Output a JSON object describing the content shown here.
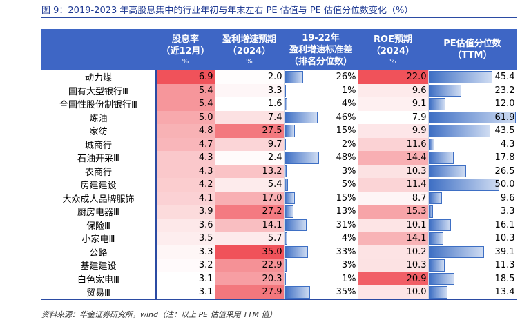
{
  "title": "图 9：2019-2023 年高股息集中的行业年初与年末左右 PE 估值与 PE 估值分位数变化（%）",
  "headers": [
    {
      "label": "股息率",
      "sub": "（近12月）",
      "unit": "%"
    },
    {
      "label": "盈利增速预期",
      "sub": "（2024）",
      "unit": "%"
    },
    {
      "label": "19-22年",
      "sub": "盈利增速标准差",
      "sub2": "（排名分位数）"
    },
    {
      "label": "ROE预期",
      "sub": "（2024）",
      "unit": "%"
    },
    {
      "label": "PE估值分位数",
      "sub": "（TTM）"
    }
  ],
  "colors": {
    "header_bg": "#3e66c5",
    "red_scale": "#f0525a",
    "blue_bar": "#3e6fc4"
  },
  "rows": [
    {
      "name": "动力煤",
      "div": "6.9",
      "growth": "2.0",
      "std": "26%",
      "std_v": 26,
      "roe": "22.0",
      "pe": "45.4",
      "pe_v": 45.4
    },
    {
      "name": "国有大型银行Ⅲ",
      "div": "5.4",
      "growth": "3.3",
      "std": "1%",
      "std_v": 1,
      "roe": "9.6",
      "pe": "23.2",
      "pe_v": 23.2
    },
    {
      "name": "全国性股份制银行Ⅲ",
      "div": "5.4",
      "growth": "1.6",
      "std": "4%",
      "std_v": 4,
      "roe": "9.1",
      "pe": "12.0",
      "pe_v": 12.0
    },
    {
      "name": "炼油",
      "div": "5.0",
      "growth": "7.4",
      "std": "46%",
      "std_v": 46,
      "roe": "7.9",
      "pe": "61.9",
      "pe_v": 61.9
    },
    {
      "name": "家纺",
      "div": "4.8",
      "growth": "27.5",
      "std": "15%",
      "std_v": 15,
      "roe": "9.9",
      "pe": "43.5",
      "pe_v": 43.5
    },
    {
      "name": "城商行",
      "div": "4.7",
      "growth": "9.7",
      "std": "2%",
      "std_v": 2,
      "roe": "11.6",
      "pe": "4.3",
      "pe_v": 4.3
    },
    {
      "name": "石油开采Ⅲ",
      "div": "4.3",
      "growth": "2.4",
      "std": "48%",
      "std_v": 48,
      "roe": "14.4",
      "pe": "17.8",
      "pe_v": 17.8
    },
    {
      "name": "农商行",
      "div": "4.3",
      "growth": "13.2",
      "std": "3%",
      "std_v": 3,
      "roe": "10.3",
      "pe": "26.5",
      "pe_v": 26.5
    },
    {
      "name": "房建建设",
      "div": "4.2",
      "growth": "5.4",
      "std": "5%",
      "std_v": 5,
      "roe": "11.4",
      "pe": "50.0",
      "pe_v": 50.0
    },
    {
      "name": "大众成人品牌服饰",
      "div": "4.1",
      "growth": "17.0",
      "std": "15%",
      "std_v": 15,
      "roe": "8.7",
      "pe": "9.6",
      "pe_v": 9.6
    },
    {
      "name": "厨房电器Ⅲ",
      "div": "3.9",
      "growth": "27.2",
      "std": "13%",
      "std_v": 13,
      "roe": "15.3",
      "pe": "3.3",
      "pe_v": 3.3
    },
    {
      "name": "保险Ⅲ",
      "div": "3.6",
      "growth": "14.1",
      "std": "31%",
      "std_v": 31,
      "roe": "10.1",
      "pe": "16.1",
      "pe_v": 16.1
    },
    {
      "name": "小家电Ⅲ",
      "div": "3.5",
      "growth": "5.7",
      "std": "4%",
      "std_v": 4,
      "roe": "14.1",
      "pe": "10.3",
      "pe_v": 10.3
    },
    {
      "name": "公路",
      "div": "3.3",
      "growth": "35.0",
      "std": "33%",
      "std_v": 33,
      "roe": "10.2",
      "pe": "39.1",
      "pe_v": 39.1
    },
    {
      "name": "基建建设",
      "div": "3.2",
      "growth": "22.9",
      "std": "3%",
      "std_v": 3,
      "roe": "10.3",
      "pe": "11.3",
      "pe_v": 11.3
    },
    {
      "name": "白色家电Ⅲ",
      "div": "3.1",
      "growth": "20.3",
      "std": "1%",
      "std_v": 1,
      "roe": "20.9",
      "pe": "18.5",
      "pe_v": 18.5
    },
    {
      "name": "贸易Ⅲ",
      "div": "3.1",
      "growth": "27.9",
      "std": "35%",
      "std_v": 35,
      "roe": "10.0",
      "pe": "13.4",
      "pe_v": 13.4
    }
  ],
  "source": "资料来源：华金证券研究所，wind（注：以上 PE 估值采用 TTM 值）"
}
